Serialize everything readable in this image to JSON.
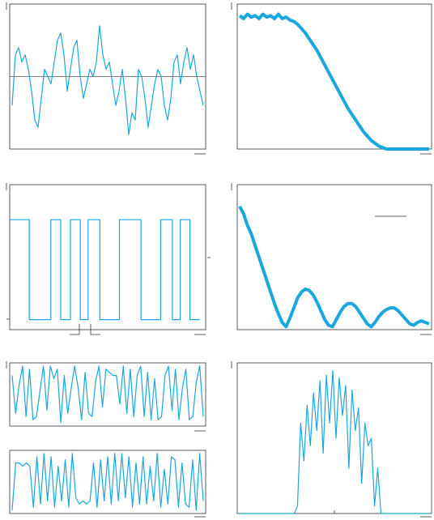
{
  "chart_data": [
    {
      "type": "line",
      "color": "#1aa7e0",
      "ylim": [
        -1,
        1
      ],
      "hline": 0,
      "values": [
        -0.4,
        0.3,
        0.4,
        0.2,
        0.3,
        0.1,
        -0.2,
        -0.6,
        -0.7,
        -0.3,
        0.1,
        0,
        -0.1,
        0.2,
        0.5,
        0.6,
        0.3,
        -0.2,
        0.1,
        0.4,
        0.5,
        0,
        -0.3,
        -0.1,
        0.1,
        0,
        0.2,
        0.7,
        0.3,
        0.1,
        0.2,
        -0.1,
        -0.4,
        -0.2,
        0.1,
        -0.3,
        -0.8,
        -0.5,
        -0.6,
        0.1,
        0,
        -0.3,
        -0.7,
        -0.4,
        -0.1,
        0.1,
        0,
        -0.4,
        -0.6,
        -0.3,
        0.2,
        0.3,
        -0.1,
        0.2,
        0.4,
        0.1,
        0.3,
        0,
        -0.2,
        -0.4
      ]
    },
    {
      "type": "band",
      "color": "#1aa7e0",
      "ylim": [
        0,
        1
      ],
      "values": [
        0.92,
        0.9,
        0.93,
        0.91,
        0.92,
        0.9,
        0.93,
        0.91,
        0.92,
        0.9,
        0.93,
        0.9,
        0.91,
        0.89,
        0.88,
        0.86,
        0.83,
        0.8,
        0.76,
        0.72,
        0.68,
        0.63,
        0.58,
        0.53,
        0.48,
        0.43,
        0.38,
        0.33,
        0.28,
        0.24,
        0.2,
        0.16,
        0.12,
        0.09,
        0.06,
        0.04,
        0.02,
        0.01,
        0,
        0,
        0,
        0,
        0,
        0,
        0,
        0,
        0,
        0,
        0,
        0
      ]
    },
    {
      "type": "step",
      "color": "#1aa7e0",
      "ylim": [
        -0.1,
        1.35
      ],
      "x": [
        0,
        0.1,
        0.21,
        0.26,
        0.31,
        0.36,
        0.4,
        0.46,
        0.56,
        0.67,
        0.77,
        0.83,
        0.87,
        0.92,
        0.97
      ],
      "values": [
        1,
        0,
        1,
        0,
        1,
        0,
        1,
        0,
        1,
        0,
        1,
        0,
        1,
        0,
        0
      ]
    },
    {
      "type": "band",
      "color": "#1aa7e0",
      "ylim": [
        0,
        1
      ],
      "values": [
        0.85,
        0.8,
        0.72,
        0.66,
        0.58,
        0.5,
        0.42,
        0.34,
        0.26,
        0.18,
        0.11,
        0.05,
        0.02,
        0.08,
        0.15,
        0.22,
        0.26,
        0.28,
        0.27,
        0.24,
        0.19,
        0.13,
        0.07,
        0.03,
        0.02,
        0.07,
        0.12,
        0.16,
        0.18,
        0.18,
        0.16,
        0.12,
        0.08,
        0.04,
        0.02,
        0.05,
        0.09,
        0.12,
        0.14,
        0.15,
        0.15,
        0.13,
        0.1,
        0.07,
        0.04,
        0.03,
        0.05,
        0.06,
        0.05,
        0.04
      ]
    },
    {
      "type": "line",
      "color": "#1aa7e0",
      "ylim": [
        -1,
        1
      ],
      "values": [
        0.6,
        -0.6,
        0.3,
        0.9,
        -0.7,
        0.8,
        -0.8,
        -0.7,
        0.1,
        0.9,
        -0.5,
        0.9,
        0.5,
        0.8,
        -0.9,
        0.6,
        -0.6,
        0.2,
        0.9,
        0.2,
        -0.8,
        0.7,
        -0.6,
        -0.7,
        0.4,
        0.9,
        -0.4,
        0.8,
        0.7,
        0.6,
        0.6,
        -0.3,
        0.9,
        -0.6,
        0.8,
        -0.7,
        0.6,
        0.9,
        -0.7,
        0.7,
        -0.8,
        0.5,
        -0.8,
        -0.7,
        0.6,
        0.9,
        -0.5,
        0.8,
        -0.8,
        0.2,
        0.8,
        -0.8,
        -0.7,
        0.4,
        0.9,
        -0.7
      ]
    },
    {
      "type": "line",
      "color": "#1aa7e0",
      "ylim": [
        -1,
        1
      ],
      "values": [
        -0.9,
        0.6,
        0.6,
        0.5,
        0.6,
        0.5,
        -0.8,
        0.8,
        -0.7,
        0.9,
        -0.6,
        0.8,
        -0.8,
        0.5,
        -0.6,
        0.7,
        -0.8,
        0.9,
        -0.5,
        -0.7,
        -0.6,
        -0.7,
        -0.6,
        0.6,
        -0.8,
        0.7,
        -0.6,
        0.8,
        -0.7,
        0.9,
        -0.6,
        0.9,
        -0.5,
        0.8,
        -0.8,
        0.6,
        -0.7,
        0.8,
        -0.7,
        0.5,
        -0.6,
        0.9,
        -0.8,
        0.4,
        -0.7,
        0.8,
        0.7,
        -0.8,
        0.6,
        -0.7,
        -0.8,
        0.7,
        -0.9,
        0.9,
        -0.6
      ]
    },
    {
      "type": "line",
      "color": "#1aa7e0",
      "ylim": [
        0,
        1
      ],
      "values": [
        0,
        0,
        0,
        0,
        0,
        0,
        0,
        0,
        0,
        0,
        0,
        0,
        0,
        0,
        0,
        0,
        0,
        0,
        0.05,
        0.6,
        0.35,
        0.72,
        0.45,
        0.8,
        0.55,
        0.88,
        0.4,
        0.92,
        0.6,
        0.95,
        0.5,
        0.9,
        0.65,
        0.85,
        0.3,
        0.82,
        0.55,
        0.7,
        0.2,
        0.6,
        0.45,
        0.5,
        0.05,
        0.3,
        0,
        0,
        0,
        0,
        0,
        0,
        0,
        0,
        0,
        0,
        0,
        0,
        0,
        0,
        0,
        0
      ]
    }
  ]
}
